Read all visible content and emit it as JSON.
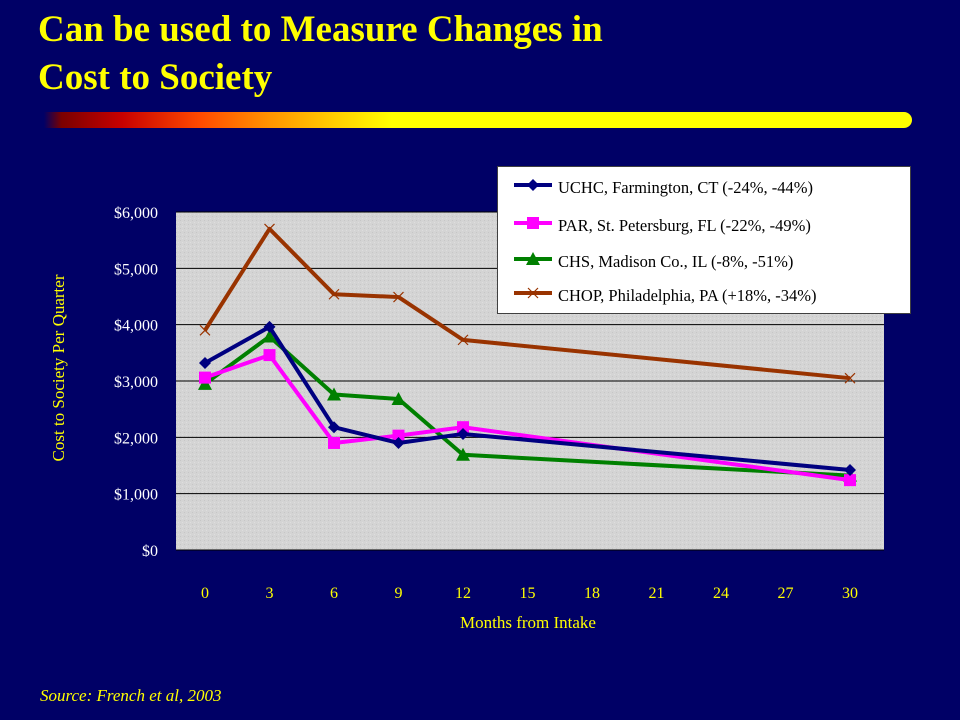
{
  "slide": {
    "title_line1": "Can be used to Measure Changes in",
    "title_line2": "Cost to Society",
    "source": "Source:  French et al, 2003"
  },
  "colors": {
    "background": "#000066",
    "title": "#FFFF00",
    "plot_area": "#D4D4D4"
  },
  "chart_data": {
    "type": "line",
    "xlabel": "Months from Intake",
    "ylabel": "Cost to Society Per Quarter",
    "xlim": [
      0,
      30
    ],
    "ylim": [
      0,
      6000
    ],
    "x_ticks": [
      0,
      3,
      6,
      9,
      12,
      15,
      18,
      21,
      24,
      27,
      30
    ],
    "y_ticks": [
      0,
      1000,
      2000,
      3000,
      4000,
      5000,
      6000
    ],
    "y_tick_labels": [
      "$0",
      "$1,000",
      "$2,000",
      "$3,000",
      "$4,000",
      "$5,000",
      "$6,000"
    ],
    "grid": true,
    "legend_position": "top-right",
    "series": [
      {
        "name": "UCHC, Farmington, CT (-24%, -44%)",
        "color": "#000080",
        "marker": "diamond",
        "x": [
          0,
          3,
          6,
          9,
          12,
          30
        ],
        "values": [
          3320,
          3960,
          2180,
          1900,
          2060,
          1420
        ]
      },
      {
        "name": "PAR, St. Petersburg, FL (-22%, -49%)",
        "color": "#FF00FF",
        "marker": "square",
        "x": [
          0,
          3,
          6,
          9,
          12,
          30
        ],
        "values": [
          3060,
          3460,
          1900,
          2030,
          2180,
          1240
        ]
      },
      {
        "name": "CHS, Madison Co., IL (-8%, -51%)",
        "color": "#008000",
        "marker": "triangle",
        "x": [
          0,
          3,
          6,
          9,
          12,
          30
        ],
        "values": [
          2950,
          3790,
          2760,
          2680,
          1690,
          1320
        ]
      },
      {
        "name": "CHOP, Philadelphia, PA (+18%, -34%)",
        "color": "#993300",
        "marker": "x",
        "x": [
          0,
          3,
          6,
          9,
          12,
          30
        ],
        "values": [
          3900,
          5700,
          4540,
          4490,
          3730,
          3050
        ]
      }
    ]
  }
}
